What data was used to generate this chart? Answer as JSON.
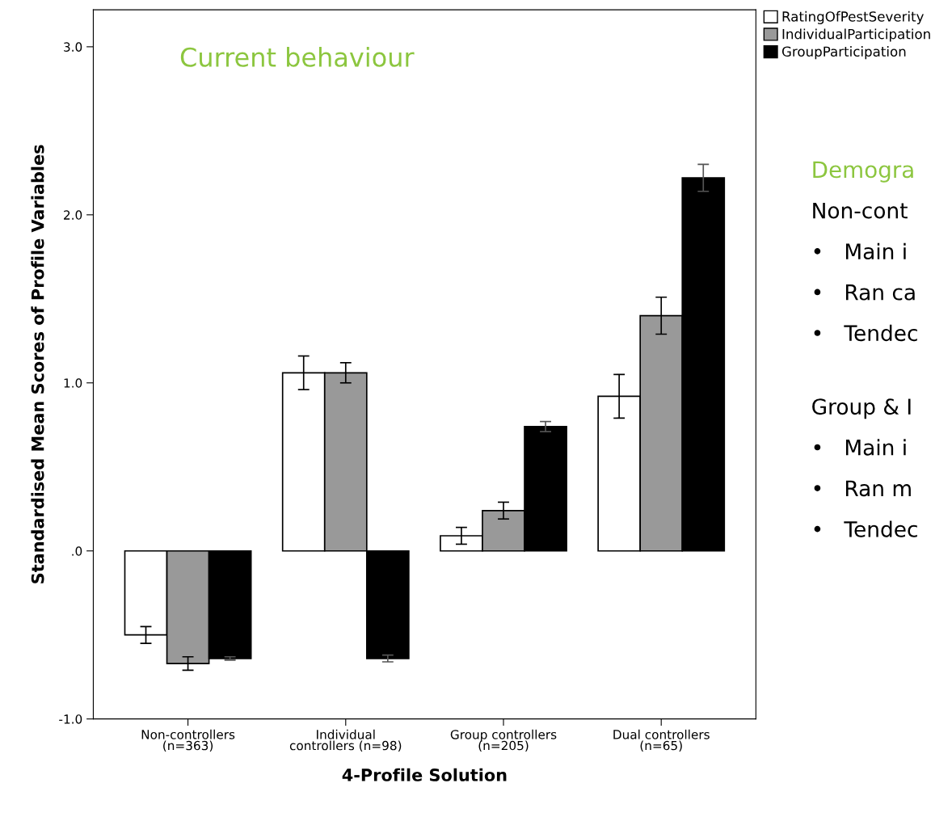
{
  "chart_data": {
    "type": "bar",
    "xlabel": "4-Profile Solution",
    "ylabel": "Standardised Mean Scores of Profile Variables",
    "categories": [
      "Non-controllers\n(n=363)",
      "Individual\ncontrollers (n=98)",
      "Group controllers\n(n=205)",
      "Dual controllers\n(n=65)"
    ],
    "series": [
      {
        "name": "RatingOfPestSeverity",
        "color": "#ffffff",
        "values": [
          -0.5,
          1.06,
          0.09,
          0.92
        ],
        "errors": [
          0.05,
          0.1,
          0.05,
          0.13
        ]
      },
      {
        "name": "IndividualParticipation",
        "color": "#999999",
        "values": [
          -0.67,
          1.06,
          0.24,
          1.4
        ],
        "errors": [
          0.04,
          0.06,
          0.05,
          0.11
        ]
      },
      {
        "name": "GroupParticipation",
        "color": "#000000",
        "values": [
          -0.64,
          -0.64,
          0.74,
          2.22
        ],
        "errors": [
          0.01,
          0.02,
          0.03,
          0.08
        ]
      }
    ],
    "ylim": [
      -1.0,
      3.22
    ],
    "yticks": [
      {
        "value": -1.0,
        "label": "-1.0"
      },
      {
        "value": 0,
        "label": ".0"
      },
      {
        "value": 1.0,
        "label": "1.0"
      },
      {
        "value": 2.0,
        "label": "2.0"
      },
      {
        "value": 3.0,
        "label": "3.0"
      }
    ],
    "legend": "top right",
    "grid": false,
    "annotations": [
      "Current behaviour",
      "Demogra",
      "Non-cont",
      "•   Main i",
      "•   Ran ca",
      "•   Tendec",
      "Group & I",
      "•   Main i",
      "•   Ran m",
      "•   Tendec"
    ]
  }
}
